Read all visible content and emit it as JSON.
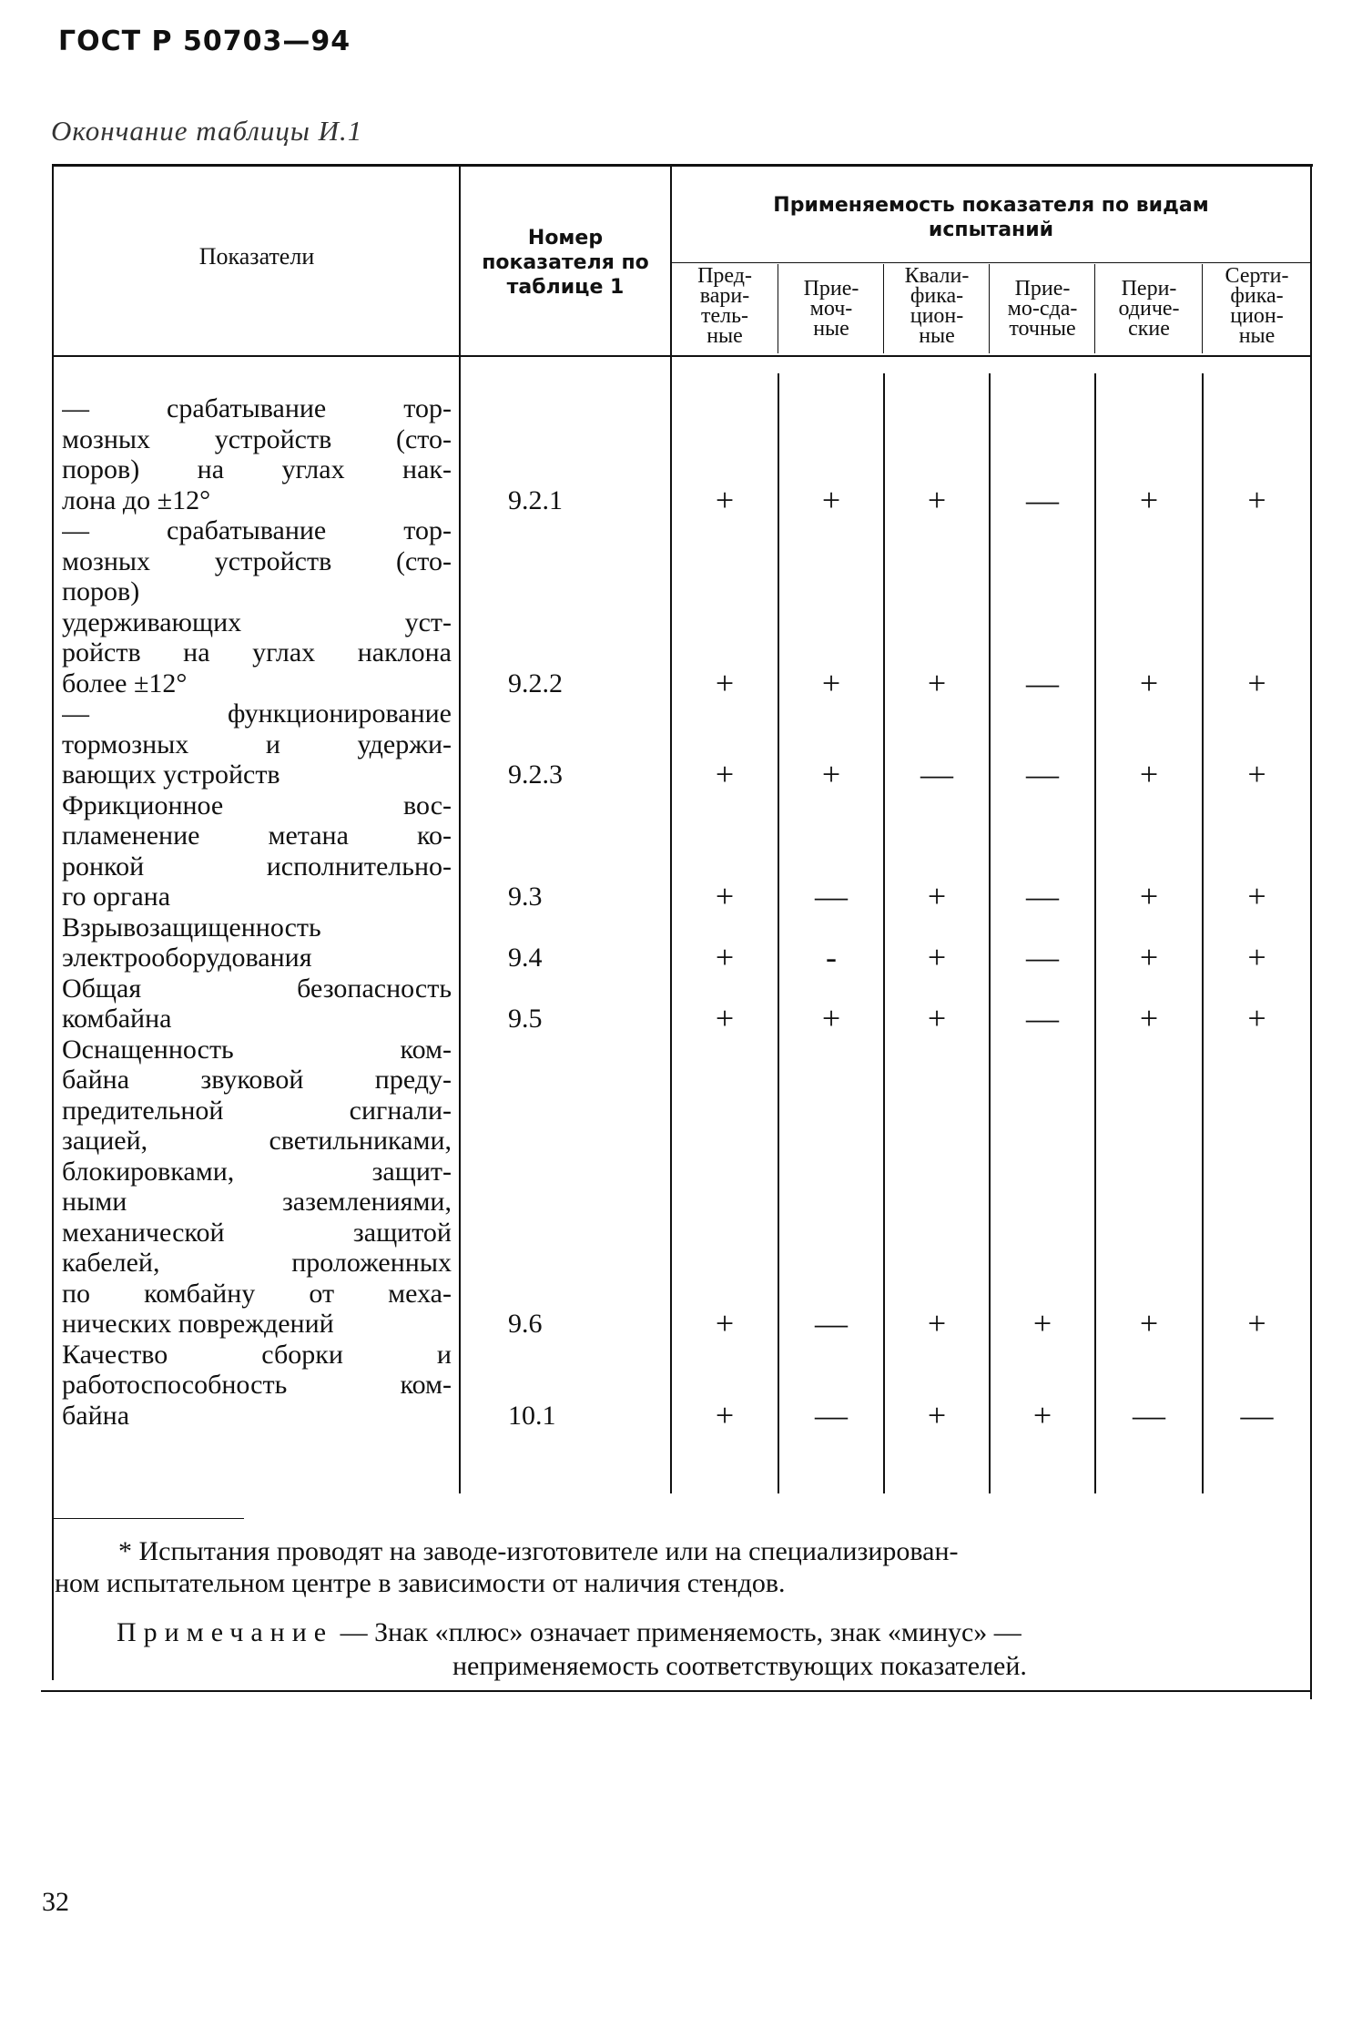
{
  "document": {
    "standard": "ГОСТ Р 50703—94",
    "caption": "Окончание таблицы И.1",
    "page_number": "32"
  },
  "table": {
    "headers": {
      "indicators": "Показатели",
      "number": [
        "Номер",
        "показателя по",
        "таблице 1"
      ],
      "applicability": [
        "Применяемость показателя по видам",
        "испытаний"
      ],
      "test_types": [
        [
          "Пред-",
          "вари-",
          "тель-",
          "ные"
        ],
        [
          "Прие-",
          "моч-",
          "ные"
        ],
        [
          "Квали-",
          "фика-",
          "цион-",
          "ные"
        ],
        [
          "Прие-",
          "мо-сда-",
          "точные"
        ],
        [
          "Пери-",
          "одиче-",
          "ские"
        ],
        [
          "Серти-",
          "фика-",
          "цион-",
          "ные"
        ]
      ]
    },
    "rows": [
      {
        "lines": [
          "— срабатывание тор-",
          "мозных устройств (сто-",
          "поров) на углах нак-",
          "лона до ±12°"
        ],
        "number": "9.2.1",
        "marks": [
          "+",
          "+",
          "+",
          "—",
          "+",
          "+"
        ]
      },
      {
        "lines": [
          "— срабатывание тор-",
          "мозных устройств (сто-",
          "поров)",
          "удерживающих уст-",
          "ройств на углах наклона",
          "более ±12°"
        ],
        "number": "9.2.2",
        "marks": [
          "+",
          "+",
          "+",
          "—",
          "+",
          "+"
        ]
      },
      {
        "lines": [
          "— функционирование",
          "тормозных и удержи-",
          "вающих устройств"
        ],
        "number": "9.2.3",
        "marks": [
          "+",
          "+",
          "—",
          "—",
          "+",
          "+"
        ]
      },
      {
        "lines": [
          "Фрикционное вос-",
          "пламенение метана ко-",
          "ронкой исполнительно-",
          "го органа"
        ],
        "number": "9.3",
        "marks": [
          "+",
          "—",
          "+",
          "—",
          "+",
          "+"
        ]
      },
      {
        "lines": [
          "Взрывозащищенность",
          "электрооборудования"
        ],
        "number": "9.4",
        "marks": [
          "+",
          "-",
          "+",
          "—",
          "+",
          "+"
        ]
      },
      {
        "lines": [
          "Общая безопасность",
          "комбайна"
        ],
        "number": "9.5",
        "marks": [
          "+",
          "+",
          "+",
          "—",
          "+",
          "+"
        ]
      },
      {
        "lines": [
          "Оснащенность ком-",
          "байна звуковой преду-",
          "предительной сигнали-",
          "зацией, светильниками,",
          "блокировками, защит-",
          "ными заземлениями,",
          "механической защитой",
          "кабелей, проложенных",
          "по комбайну от меха-",
          "нических повреждений"
        ],
        "number": "9.6",
        "marks": [
          "+",
          "—",
          "+",
          "+",
          "+",
          "+"
        ]
      },
      {
        "lines": [
          "Качество сборки и",
          "работоспособность ком-",
          "байна"
        ],
        "number": "10.1",
        "marks": [
          "+",
          "—",
          "+",
          "+",
          "—",
          "—"
        ]
      }
    ]
  },
  "footnotes": {
    "asterisk": [
      "* Испытания проводят на заводе-изготовителе или на специализирован-",
      "ном испытательном центре в зависимости от наличия стендов."
    ],
    "note_label": "Примечание",
    "note": [
      "— Знак «плюс» означает применяемость, знак «минус» —",
      "неприменяемость соответствующих показателей."
    ]
  }
}
